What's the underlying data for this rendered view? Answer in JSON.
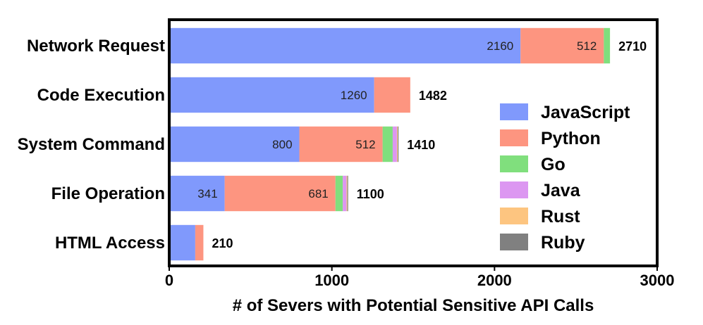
{
  "chart_data": {
    "type": "bar",
    "orientation": "horizontal",
    "stacked": true,
    "xlabel": "# of Severs with Potential Sensitive API Calls",
    "ylabel": "",
    "xlim": [
      0,
      3000
    ],
    "xticks": [
      "0",
      "1000",
      "2000",
      "3000"
    ],
    "categories": [
      "Network Request",
      "Code Execution",
      "System Command",
      "File Operation",
      "HTML Access"
    ],
    "series": [
      {
        "name": "JavaScript",
        "color": "#8099fc",
        "values": [
          2160,
          1260,
          800,
          341,
          160
        ]
      },
      {
        "name": "Python",
        "color": "#fd9580",
        "values": [
          512,
          222,
          512,
          681,
          50
        ]
      },
      {
        "name": "Go",
        "color": "#80df7d",
        "values": [
          38,
          0,
          62,
          45,
          0
        ]
      },
      {
        "name": "Java",
        "color": "#dc97f1",
        "values": [
          0,
          0,
          26,
          23,
          0
        ]
      },
      {
        "name": "Rust",
        "color": "#fdc580",
        "values": [
          0,
          0,
          5,
          5,
          0
        ]
      },
      {
        "name": "Ruby",
        "color": "#808080",
        "values": [
          0,
          0,
          5,
          5,
          0
        ]
      }
    ],
    "segment_labels": [
      {
        "category": 0,
        "series": 0,
        "text": "2160"
      },
      {
        "category": 0,
        "series": 1,
        "text": "512"
      },
      {
        "category": 1,
        "series": 0,
        "text": "1260"
      },
      {
        "category": 2,
        "series": 0,
        "text": "800"
      },
      {
        "category": 2,
        "series": 1,
        "text": "512"
      },
      {
        "category": 3,
        "series": 0,
        "text": "341"
      },
      {
        "category": 3,
        "series": 1,
        "text": "681"
      }
    ],
    "totals": [
      "2710",
      "1482",
      "1410",
      "1100",
      "210"
    ],
    "legend": "right",
    "grid": false
  }
}
